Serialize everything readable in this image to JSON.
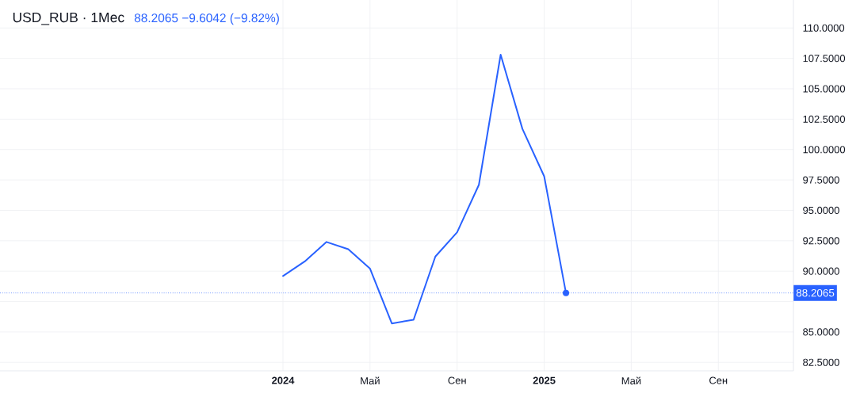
{
  "chart_data": {
    "type": "line",
    "title": "USD_RUB · 1Мес",
    "subtitle": "88.2065 −9.6042 (−9.82%)",
    "x": [
      "2024-01",
      "2024-02",
      "2024-03",
      "2024-04",
      "2024-05",
      "2024-06",
      "2024-07",
      "2024-08",
      "2024-09",
      "2024-10",
      "2024-11",
      "2024-12",
      "2025-01",
      "2025-02"
    ],
    "series": [
      {
        "color": "#2962ff",
        "values": [
          89.6,
          90.8,
          92.4,
          91.8,
          90.2,
          85.7,
          86.0,
          91.2,
          93.2,
          97.1,
          107.8,
          101.7,
          97.8,
          88.2065
        ]
      },
      {
        "type": "scatter",
        "color": "#2962ff",
        "marker": "circle",
        "x": [
          "2025-02"
        ],
        "values": [
          88.2065
        ]
      }
    ],
    "xlim": [
      "2022-12",
      "2025-12-15"
    ],
    "xticks": [
      {
        "value": "2024-01",
        "label": "2024"
      },
      {
        "value": "2024-05",
        "label": "Май"
      },
      {
        "value": "2024-09",
        "label": "Сен"
      },
      {
        "value": "2025-01",
        "label": "2025"
      },
      {
        "value": "2025-05",
        "label": "Май"
      },
      {
        "value": "2025-09",
        "label": "Сен"
      }
    ],
    "ylim": [
      81.8,
      112.3
    ],
    "yticks": [
      {
        "value": 82.5,
        "label": "82.5000"
      },
      {
        "value": 85,
        "label": "85.0000"
      },
      {
        "value": 87.5,
        "label": null
      },
      {
        "value": 90,
        "label": "90.0000"
      },
      {
        "value": 92.5,
        "label": "92.5000"
      },
      {
        "value": 95,
        "label": "95.0000"
      },
      {
        "value": 97.5,
        "label": "97.5000"
      },
      {
        "value": 100,
        "label": "100.0000"
      },
      {
        "value": 102.5,
        "label": "102.5000"
      },
      {
        "value": 105,
        "label": "105.0000"
      },
      {
        "value": 107.5,
        "label": "107.5000"
      },
      {
        "value": 110,
        "label": "110.0000"
      }
    ],
    "grid": true,
    "marker": "none",
    "line_style": "solid",
    "ref_lines": [
      {
        "axis": "y",
        "value": 88.2065,
        "label": "88.2065",
        "color": "#2962ff",
        "line_style": "dotted"
      }
    ]
  }
}
